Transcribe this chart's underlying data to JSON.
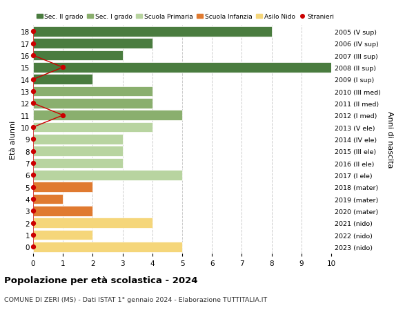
{
  "ages": [
    18,
    17,
    16,
    15,
    14,
    13,
    12,
    11,
    10,
    9,
    8,
    7,
    6,
    5,
    4,
    3,
    2,
    1,
    0
  ],
  "right_labels": [
    "2005 (V sup)",
    "2006 (IV sup)",
    "2007 (III sup)",
    "2008 (II sup)",
    "2009 (I sup)",
    "2010 (III med)",
    "2011 (II med)",
    "2012 (I med)",
    "2013 (V ele)",
    "2014 (IV ele)",
    "2015 (III ele)",
    "2016 (II ele)",
    "2017 (I ele)",
    "2018 (mater)",
    "2019 (mater)",
    "2020 (mater)",
    "2021 (nido)",
    "2022 (nido)",
    "2023 (nido)"
  ],
  "bar_values": [
    8,
    4,
    3,
    10,
    2,
    4,
    4,
    5,
    4,
    3,
    3,
    3,
    5,
    2,
    1,
    2,
    4,
    2,
    5
  ],
  "bar_colors": [
    "#4a7c3f",
    "#4a7c3f",
    "#4a7c3f",
    "#4a7c3f",
    "#4a7c3f",
    "#8aaf6e",
    "#8aaf6e",
    "#8aaf6e",
    "#b8d4a0",
    "#b8d4a0",
    "#b8d4a0",
    "#b8d4a0",
    "#b8d4a0",
    "#e07a30",
    "#e07a30",
    "#e07a30",
    "#f5d67a",
    "#f5d67a",
    "#f5d67a"
  ],
  "stranieri_ages": [
    18,
    17,
    16,
    15,
    14,
    13,
    12,
    11,
    10,
    9,
    8,
    7,
    6,
    5,
    4,
    3,
    2,
    1,
    0
  ],
  "stranieri_values": [
    0,
    0,
    0,
    1,
    0,
    0,
    0,
    1,
    0,
    0,
    0,
    0,
    0,
    0,
    0,
    0,
    0,
    0,
    0
  ],
  "legend_labels": [
    "Sec. II grado",
    "Sec. I grado",
    "Scuola Primaria",
    "Scuola Infanzia",
    "Asilo Nido",
    "Stranieri"
  ],
  "legend_colors": [
    "#4a7c3f",
    "#8aaf6e",
    "#b8d4a0",
    "#e07a30",
    "#f5d67a",
    "#cc0000"
  ],
  "ylabel_left": "Età alunni",
  "ylabel_right": "Anni di nascita",
  "title": "Popolazione per età scolastica - 2024",
  "subtitle": "COMUNE DI ZERI (MS) - Dati ISTAT 1° gennaio 2024 - Elaborazione TUTTITALIA.IT",
  "xlim": [
    0,
    10
  ],
  "xticks": [
    0,
    1,
    2,
    3,
    4,
    5,
    6,
    7,
    8,
    9,
    10
  ],
  "background_color": "#ffffff",
  "grid_color": "#cccccc"
}
